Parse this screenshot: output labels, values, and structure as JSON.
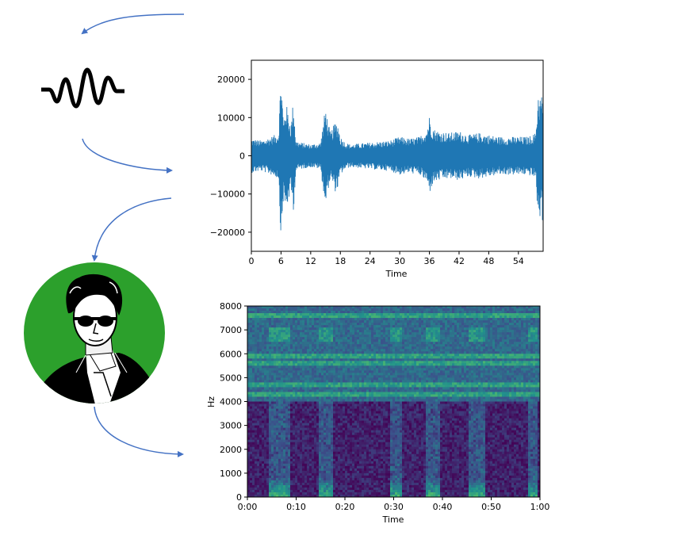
{
  "colors": {
    "arrow": "#4472c4",
    "waveform": "#1f77b4",
    "circle": "#2ca02c",
    "icon": "#000000"
  },
  "icons": {
    "sound_wave": "sound-wave-icon",
    "portrait": "fourier-portrait-icon"
  },
  "chart_data": [
    {
      "type": "line",
      "xlabel": "Time",
      "ylabel": "",
      "xlim": [
        0,
        59
      ],
      "ylim": [
        -25000,
        25000
      ],
      "x_ticks": [
        0,
        6,
        12,
        18,
        24,
        30,
        36,
        42,
        48,
        54
      ],
      "x_tick_labels": [
        "0",
        "6",
        "12",
        "18",
        "24",
        "30",
        "36",
        "42",
        "48",
        "54"
      ],
      "y_ticks": [
        20000,
        10000,
        0,
        -10000,
        -20000
      ],
      "y_tick_labels": [
        "20000",
        "10000",
        "0",
        "−10000",
        "−20000"
      ],
      "envelope": {
        "x": [
          0,
          2,
          4,
          5.5,
          6,
          6.5,
          7,
          8,
          8.5,
          9,
          10,
          12,
          14,
          15,
          15.5,
          16,
          17,
          17.5,
          18,
          19,
          20,
          24,
          28,
          30,
          32,
          34,
          35.5,
          36,
          36.5,
          37,
          38,
          40,
          42,
          44,
          46,
          48,
          50,
          52,
          54,
          56,
          57.5,
          58,
          58.5,
          59
        ],
        "upper": [
          4500,
          4000,
          5000,
          6000,
          22500,
          9000,
          14000,
          8000,
          15000,
          4000,
          3500,
          3000,
          3500,
          13000,
          9000,
          6000,
          9000,
          8500,
          5000,
          3500,
          3000,
          3500,
          4000,
          5000,
          4500,
          5000,
          7000,
          10500,
          8000,
          7000,
          6500,
          6000,
          6500,
          5500,
          6000,
          5500,
          5000,
          5000,
          5000,
          5000,
          6000,
          17000,
          15500,
          17000
        ],
        "lower": [
          -4500,
          -4000,
          -5000,
          -6000,
          -22500,
          -11000,
          -15000,
          -9000,
          -15000,
          -4000,
          -3500,
          -3000,
          -3500,
          -13500,
          -9000,
          -6000,
          -9500,
          -8500,
          -5000,
          -3500,
          -3000,
          -3500,
          -4000,
          -5000,
          -4500,
          -5000,
          -7000,
          -10000,
          -8000,
          -7000,
          -6500,
          -6000,
          -6500,
          -5500,
          -6000,
          -5500,
          -5000,
          -5000,
          -5000,
          -5000,
          -6000,
          -17500,
          -16000,
          -17500
        ]
      }
    },
    {
      "type": "heatmap",
      "xlabel": "Time",
      "ylabel": "Hz",
      "xlim": [
        0,
        60
      ],
      "ylim": [
        0,
        8000
      ],
      "x_ticks": [
        0,
        10,
        20,
        30,
        40,
        50,
        60
      ],
      "x_tick_labels": [
        "0:00",
        "0:10",
        "0:20",
        "0:30",
        "0:40",
        "0:50",
        "1:00"
      ],
      "y_ticks": [
        0,
        1000,
        2000,
        3000,
        4000,
        5000,
        6000,
        7000,
        8000
      ],
      "y_tick_labels": [
        "0",
        "1000",
        "2000",
        "3000",
        "4000",
        "5000",
        "6000",
        "7000",
        "8000"
      ],
      "colormap": [
        "#440154",
        "#3b528b",
        "#21918c",
        "#5ec962",
        "#fde725"
      ],
      "bright_bands_hz": [
        4300,
        4700,
        5600,
        5900,
        7600
      ],
      "bright_columns_sec": [
        5,
        6,
        7,
        8,
        15,
        16,
        17,
        30,
        31,
        37,
        38,
        39,
        46,
        47,
        48,
        58,
        59
      ]
    }
  ]
}
